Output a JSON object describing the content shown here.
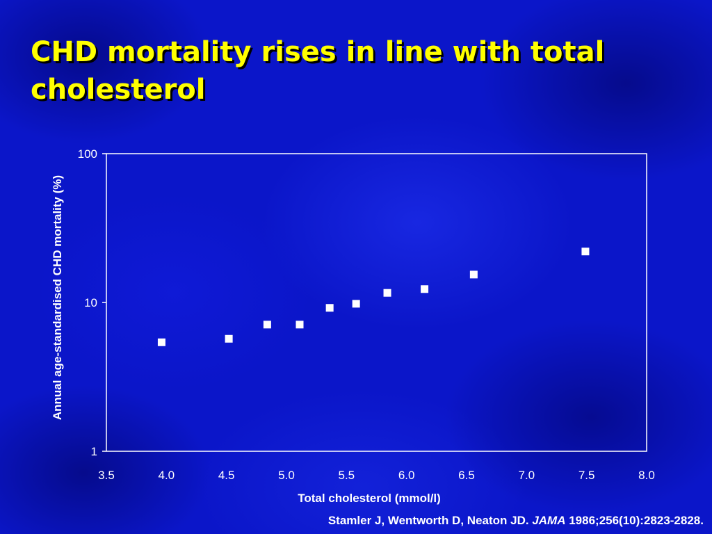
{
  "slide": {
    "title": "CHD mortality rises in line with total cholesterol",
    "citation": {
      "authors": "Stamler J, Wentworth D, Neaton JD.",
      "journal": "JAMA",
      "reference": "1986;256(10):2823-2828",
      "end": "."
    }
  },
  "colors": {
    "background": "#0b16c9",
    "title": "#ffff00",
    "text": "#ffffff",
    "marker": "#ffffff"
  },
  "chart_data": {
    "type": "scatter",
    "xlabel": "Total cholesterol (mmol/l)",
    "ylabel": "Annual age-standardised CHD mortality (%)",
    "xlim": [
      3.5,
      8.0
    ],
    "ylim": [
      1,
      100
    ],
    "yscale": "log",
    "grid": false,
    "legend": "none",
    "xticks": [
      "3.5",
      "4.0",
      "4.5",
      "5.0",
      "5.5",
      "6.0",
      "6.5",
      "7.0",
      "7.5",
      "8.0"
    ],
    "yticks": [
      "1",
      "10",
      "100"
    ],
    "marker": "square",
    "series": [
      {
        "x": [
          3.96,
          4.52,
          4.84,
          5.11,
          5.36,
          5.58,
          5.84,
          6.15,
          6.56,
          7.49
        ],
        "y": [
          5.4,
          5.7,
          7.1,
          7.1,
          9.2,
          9.8,
          11.6,
          12.3,
          15.4,
          22.0
        ]
      }
    ]
  }
}
